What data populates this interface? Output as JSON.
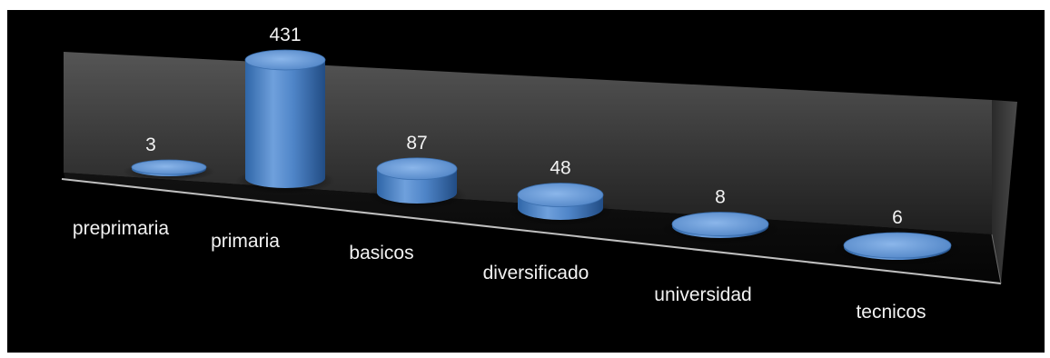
{
  "chart_data": {
    "type": "bar",
    "style": "3d-cylinder",
    "categories": [
      "preprimaria",
      "primaria",
      "basicos",
      "diversificado",
      "universidad",
      "tecnicos"
    ],
    "values": [
      3,
      431,
      87,
      48,
      8,
      6
    ],
    "data_labels": [
      "3",
      "431",
      "87",
      "48",
      "8",
      "6"
    ],
    "title": "",
    "xlabel": "",
    "ylabel": "",
    "ylim": [
      0,
      431
    ],
    "grid": false,
    "legend": "none",
    "colors": {
      "background": "#000000",
      "bar": "#4f81bd",
      "bar_light": "#8db3e2",
      "bar_dark": "#2c5d96",
      "wall": "#3a3a3a",
      "floor_edge": "#bfbfbf",
      "text": "#f2f2f2"
    }
  }
}
